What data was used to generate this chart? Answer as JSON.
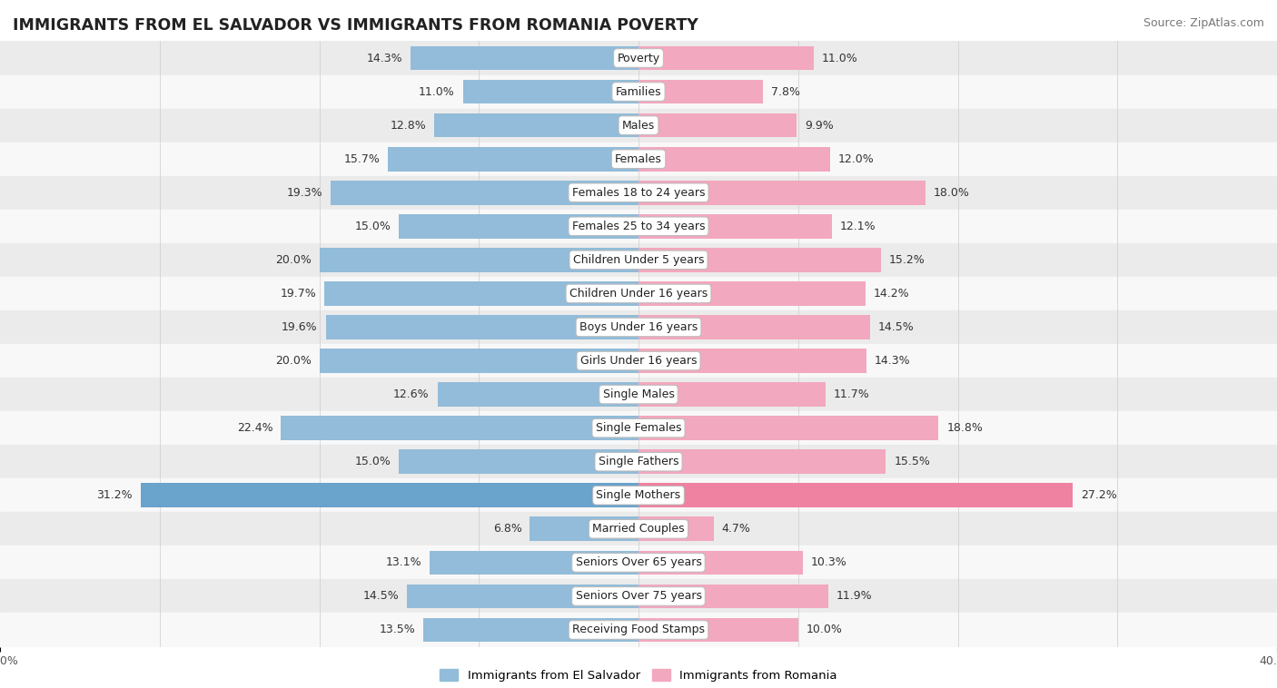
{
  "title": "IMMIGRANTS FROM EL SALVADOR VS IMMIGRANTS FROM ROMANIA POVERTY",
  "source": "Source: ZipAtlas.com",
  "categories": [
    "Poverty",
    "Families",
    "Males",
    "Females",
    "Females 18 to 24 years",
    "Females 25 to 34 years",
    "Children Under 5 years",
    "Children Under 16 years",
    "Boys Under 16 years",
    "Girls Under 16 years",
    "Single Males",
    "Single Females",
    "Single Fathers",
    "Single Mothers",
    "Married Couples",
    "Seniors Over 65 years",
    "Seniors Over 75 years",
    "Receiving Food Stamps"
  ],
  "el_salvador": [
    14.3,
    11.0,
    12.8,
    15.7,
    19.3,
    15.0,
    20.0,
    19.7,
    19.6,
    20.0,
    12.6,
    22.4,
    15.0,
    31.2,
    6.8,
    13.1,
    14.5,
    13.5
  ],
  "romania": [
    11.0,
    7.8,
    9.9,
    12.0,
    18.0,
    12.1,
    15.2,
    14.2,
    14.5,
    14.3,
    11.7,
    18.8,
    15.5,
    27.2,
    4.7,
    10.3,
    11.9,
    10.0
  ],
  "color_salvador": "#92bcd9",
  "color_romania": "#f2a8be",
  "color_salvador_single_mothers": "#6aa3cc",
  "color_romania_single_mothers": "#ee82a0",
  "bg_row_light": "#ebebeb",
  "bg_row_white": "#f8f8f8",
  "axis_limit": 40.0,
  "bar_height": 0.72,
  "title_fontsize": 12.5,
  "source_fontsize": 9,
  "value_fontsize": 9,
  "category_fontsize": 9,
  "tick_fontsize": 9
}
